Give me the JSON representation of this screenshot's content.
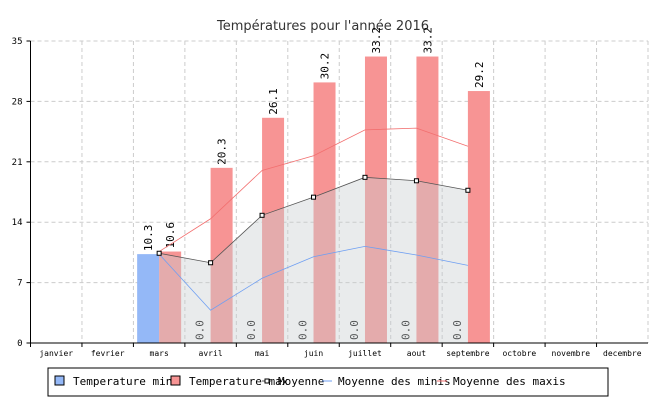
{
  "chart_data": {
    "type": "bar",
    "title": "Températures pour l'année 2016",
    "categories": [
      "janvier",
      "fevrier",
      "mars",
      "avril",
      "mai",
      "juin",
      "juillet",
      "aout",
      "septembre",
      "octobre",
      "novembre",
      "decembre"
    ],
    "ylim": [
      0,
      35
    ],
    "yticks": [
      "0",
      "7",
      "14",
      "21",
      "28",
      "35"
    ],
    "grid": true,
    "legend_position": "bottom",
    "series": [
      {
        "name": "Temperature min",
        "type": "bar",
        "color": "#94b8f7",
        "values": [
          null,
          null,
          10.3,
          0.0,
          0.0,
          0.0,
          0.0,
          0.0,
          0.0,
          null,
          null,
          null
        ],
        "labels": [
          null,
          null,
          "10.3",
          "0.0",
          "0.0",
          "0.0",
          "0.0",
          "0.0",
          "0.0",
          null,
          null,
          null
        ]
      },
      {
        "name": "Temperature max",
        "type": "bar",
        "color": "#f79494",
        "values": [
          null,
          null,
          10.6,
          20.3,
          26.1,
          30.2,
          33.2,
          33.2,
          29.2,
          null,
          null,
          null
        ],
        "labels": [
          null,
          null,
          "10.6",
          "20.3",
          "26.1",
          "30.2",
          "33.2",
          "33.2",
          "29.2",
          null,
          null,
          null
        ]
      },
      {
        "name": "Moyenne",
        "type": "area",
        "color": "#555555",
        "values": [
          null,
          null,
          10.4,
          9.3,
          14.8,
          16.9,
          19.2,
          18.8,
          17.7,
          null,
          null,
          null
        ]
      },
      {
        "name": "Moyenne des minis",
        "type": "line",
        "color": "#6f9ff2",
        "values": [
          null,
          null,
          10.3,
          3.8,
          7.5,
          10.0,
          11.2,
          10.2,
          9.0,
          null,
          null,
          null
        ]
      },
      {
        "name": "Moyenne des maxis",
        "type": "line",
        "color": "#f26f6f",
        "values": [
          null,
          null,
          10.6,
          14.4,
          20.0,
          21.7,
          24.7,
          24.9,
          22.8,
          null,
          null,
          null
        ]
      }
    ]
  }
}
